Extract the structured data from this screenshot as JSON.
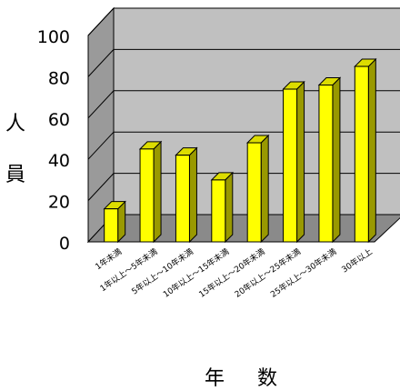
{
  "chart_data": {
    "type": "bar",
    "style": "3d-bar",
    "categories": [
      "1年未満",
      "1年以上～5年未満",
      "5年以上～10年未満",
      "10年以上～15年未満",
      "15年以上～20年未満",
      "20年以上～25年未満",
      "25年以上～30年未満",
      "30年以上"
    ],
    "values": [
      16,
      45,
      42,
      30,
      48,
      74,
      76,
      85
    ],
    "ylim": [
      0,
      100
    ],
    "yticks": [
      "0",
      "20",
      "40",
      "60",
      "80",
      "100"
    ],
    "ylabel_chars": [
      "人",
      "員"
    ],
    "xlabel_chars": [
      "年",
      "数"
    ],
    "grid": true,
    "legend": "none",
    "colors": {
      "bar_front": "#ffff00",
      "bar_top": "#dddd00",
      "bar_side": "#999900",
      "bar_edge": "#000000",
      "back_wall": "#c0c0c0",
      "side_wall": "#9a9a9a",
      "floor": "#8a8a8a",
      "gridline": "#000000"
    }
  }
}
